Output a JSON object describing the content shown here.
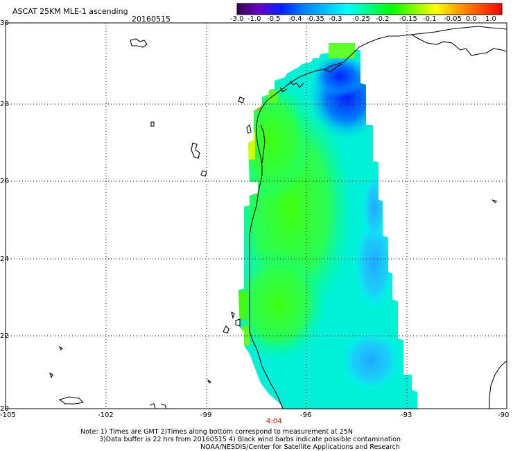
{
  "header": {
    "title": "ASCAT 25KM MLE-1 ascending",
    "date": "20160515"
  },
  "colorbar": {
    "labels": [
      "-3.0",
      "-1.0",
      "-0.5",
      "-0.4",
      "-0.35",
      "-0.3",
      "-0.25",
      "-0.2",
      "-0.15",
      "-0.1",
      "-0.05",
      "0.0",
      "1.0"
    ],
    "colors": [
      "#3a0050",
      "#6a00c8",
      "#0020ff",
      "#0080ff",
      "#00c0ff",
      "#00ffff",
      "#00ff80",
      "#00ff00",
      "#80ff00",
      "#ffff00",
      "#ffa000",
      "#ff5000",
      "#ff0000"
    ]
  },
  "axes": {
    "lon_labels": [
      "-105",
      "-102",
      "-99",
      "-96",
      "-93",
      "-90"
    ],
    "lat_labels": [
      "30",
      "28",
      "26",
      "24",
      "22",
      "20"
    ],
    "lon_range": [
      -105,
      -90
    ],
    "lat_range": [
      20,
      30
    ],
    "grid": true
  },
  "time_marker": {
    "label": "4:04",
    "color": "#cc2200"
  },
  "notes": {
    "line1": "Note: 1) Times are GMT 2)Times along bottom correspond to measurement at 25N",
    "line2": "3)Data buffer is 22 hrs from 20160515 4) Black wind barbs indicate possible contamination",
    "line3": "NOAA/NESDIS/Center for Satellite Applications and Research"
  }
}
